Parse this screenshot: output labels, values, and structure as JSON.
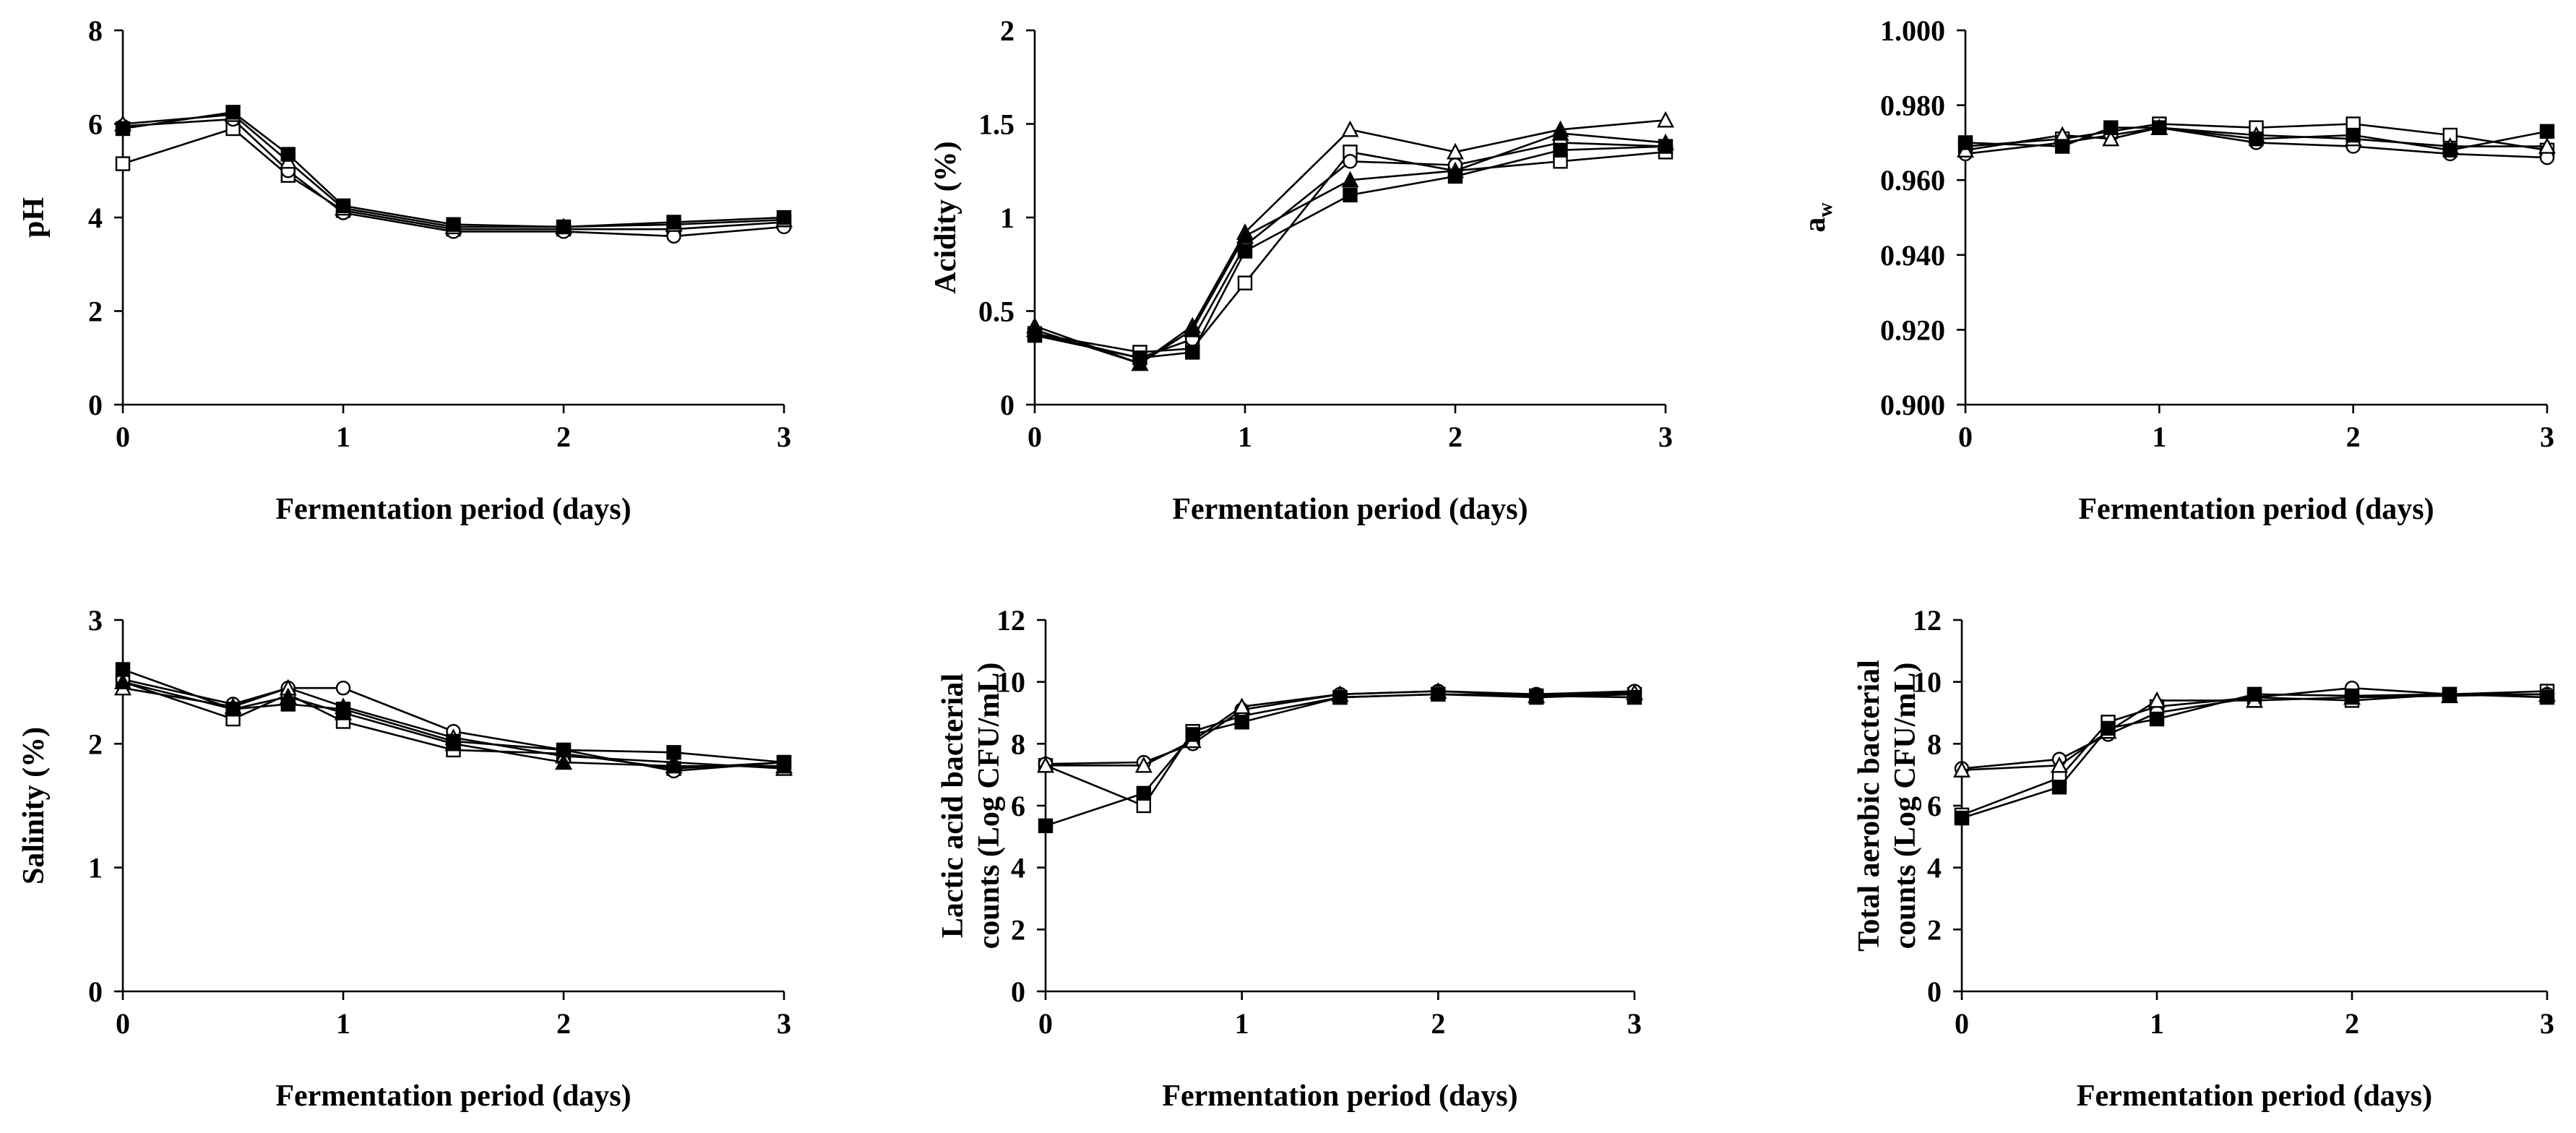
{
  "chart_data": [
    {
      "type": "line",
      "ylabel": "pH",
      "xlabel": "Fermentation period (days)",
      "ylim": [
        0,
        8
      ],
      "yticks": [
        0,
        2,
        4,
        6,
        8
      ],
      "ytick_labels": [
        "0",
        "2",
        "4",
        "6",
        "8"
      ],
      "xlim": [
        0,
        3
      ],
      "xticks": [
        0,
        1,
        2,
        3
      ],
      "xtick_labels": [
        "0",
        "1",
        "2",
        "3"
      ],
      "x": [
        0,
        0.5,
        0.75,
        1,
        1.5,
        2,
        2.5,
        3
      ],
      "series": [
        {
          "name": "open-square",
          "marker": "square-open",
          "values": [
            5.15,
            5.9,
            4.9,
            4.15,
            3.75,
            3.75,
            3.75,
            3.9
          ]
        },
        {
          "name": "open-circle",
          "marker": "circle-open",
          "values": [
            5.95,
            6.1,
            5.0,
            4.1,
            3.7,
            3.7,
            3.6,
            3.8
          ]
        },
        {
          "name": "open-triangle",
          "marker": "triangle-open",
          "values": [
            6.0,
            6.2,
            5.2,
            4.2,
            3.8,
            3.8,
            3.85,
            3.95
          ]
        },
        {
          "name": "filled-square",
          "marker": "square-filled",
          "values": [
            5.9,
            6.25,
            5.35,
            4.25,
            3.85,
            3.8,
            3.9,
            4.0
          ]
        }
      ]
    },
    {
      "type": "line",
      "ylabel": "Acidity (%)",
      "xlabel": "Fermentation period (days)",
      "ylim": [
        0,
        2
      ],
      "yticks": [
        0,
        0.5,
        1,
        1.5,
        2
      ],
      "ytick_labels": [
        "0",
        "0.5",
        "1",
        "1.5",
        "2"
      ],
      "xlim": [
        0,
        3
      ],
      "xticks": [
        0,
        1,
        2,
        3
      ],
      "xtick_labels": [
        "0",
        "1",
        "2",
        "3"
      ],
      "x": [
        0,
        0.5,
        0.75,
        1,
        1.5,
        2,
        2.5,
        3
      ],
      "series": [
        {
          "name": "open-square",
          "marker": "square-open",
          "values": [
            0.38,
            0.28,
            0.3,
            0.65,
            1.35,
            1.25,
            1.3,
            1.35
          ]
        },
        {
          "name": "open-circle",
          "marker": "circle-open",
          "values": [
            0.38,
            0.25,
            0.35,
            0.85,
            1.3,
            1.28,
            1.4,
            1.38
          ]
        },
        {
          "name": "open-triangle",
          "marker": "triangle-open",
          "values": [
            0.42,
            0.22,
            0.42,
            0.92,
            1.47,
            1.35,
            1.47,
            1.52
          ]
        },
        {
          "name": "filled-triangle",
          "marker": "triangle-filled",
          "values": [
            0.4,
            0.22,
            0.4,
            0.9,
            1.2,
            1.25,
            1.45,
            1.4
          ]
        },
        {
          "name": "filled-square",
          "marker": "square-filled",
          "values": [
            0.37,
            0.25,
            0.28,
            0.82,
            1.12,
            1.22,
            1.36,
            1.38
          ]
        }
      ]
    },
    {
      "type": "line",
      "ylabel": "a",
      "ylabel_sub": "w",
      "xlabel": "Fermentation period (days)",
      "ylim": [
        0.9,
        1.0
      ],
      "yticks": [
        0.9,
        0.92,
        0.94,
        0.96,
        0.98,
        1.0
      ],
      "ytick_labels": [
        "0.900",
        "0.920",
        "0.940",
        "0.960",
        "0.980",
        "1.000"
      ],
      "xlim": [
        0,
        3
      ],
      "xticks": [
        0,
        1,
        2,
        3
      ],
      "xtick_labels": [
        "0",
        "1",
        "2",
        "3"
      ],
      "x": [
        0,
        0.5,
        0.75,
        1,
        1.5,
        2,
        2.5,
        3
      ],
      "series": [
        {
          "name": "open-square",
          "marker": "square-open",
          "values": [
            0.969,
            0.971,
            0.973,
            0.975,
            0.974,
            0.975,
            0.972,
            0.968
          ]
        },
        {
          "name": "open-circle",
          "marker": "circle-open",
          "values": [
            0.967,
            0.97,
            0.972,
            0.974,
            0.97,
            0.969,
            0.967,
            0.966
          ]
        },
        {
          "name": "open-triangle",
          "marker": "triangle-open",
          "values": [
            0.968,
            0.972,
            0.971,
            0.974,
            0.972,
            0.971,
            0.969,
            0.969
          ]
        },
        {
          "name": "filled-square",
          "marker": "square-filled",
          "values": [
            0.97,
            0.969,
            0.974,
            0.974,
            0.971,
            0.972,
            0.968,
            0.973
          ]
        }
      ]
    },
    {
      "type": "line",
      "ylabel": "Salinity (%)",
      "xlabel": "Fermentation period (days)",
      "ylim": [
        0,
        3
      ],
      "yticks": [
        0,
        1,
        2,
        3
      ],
      "ytick_labels": [
        "0",
        "1",
        "2",
        "3"
      ],
      "xlim": [
        0,
        3
      ],
      "xticks": [
        0,
        1,
        2,
        3
      ],
      "xtick_labels": [
        "0",
        "1",
        "2",
        "3"
      ],
      "x": [
        0,
        0.5,
        0.75,
        1,
        1.5,
        2,
        2.5,
        3
      ],
      "series": [
        {
          "name": "open-square",
          "marker": "square-open",
          "values": [
            2.5,
            2.2,
            2.4,
            2.18,
            1.95,
            1.92,
            1.8,
            1.85
          ]
        },
        {
          "name": "open-circle",
          "marker": "circle-open",
          "values": [
            2.52,
            2.32,
            2.45,
            2.45,
            2.1,
            1.95,
            1.78,
            1.85
          ]
        },
        {
          "name": "open-triangle",
          "marker": "triangle-open",
          "values": [
            2.45,
            2.3,
            2.45,
            2.3,
            2.05,
            1.9,
            1.85,
            1.8
          ]
        },
        {
          "name": "filled-triangle",
          "marker": "triangle-filled",
          "values": [
            2.5,
            2.28,
            2.38,
            2.25,
            2.0,
            1.85,
            1.82,
            1.82
          ]
        },
        {
          "name": "filled-square",
          "marker": "square-filled",
          "values": [
            2.6,
            2.28,
            2.32,
            2.28,
            2.02,
            1.95,
            1.93,
            1.85
          ]
        }
      ]
    },
    {
      "type": "line",
      "ylabel": "Lactic acid bacterial",
      "ylabel2": "counts (Log CFU/mL)",
      "xlabel": "Fermentation period (days)",
      "ylim": [
        0,
        12
      ],
      "yticks": [
        0,
        2,
        4,
        6,
        8,
        10,
        12
      ],
      "ytick_labels": [
        "0",
        "2",
        "4",
        "6",
        "8",
        "10",
        "12"
      ],
      "xlim": [
        0,
        3
      ],
      "xticks": [
        0,
        1,
        2,
        3
      ],
      "xtick_labels": [
        "0",
        "1",
        "2",
        "3"
      ],
      "x": [
        0,
        0.5,
        0.75,
        1,
        1.5,
        2,
        2.5,
        3
      ],
      "series": [
        {
          "name": "open-square",
          "marker": "square-open",
          "values": [
            7.3,
            6.0,
            8.4,
            8.9,
            9.5,
            9.6,
            9.5,
            9.6
          ]
        },
        {
          "name": "open-circle",
          "marker": "circle-open",
          "values": [
            7.35,
            7.4,
            8.0,
            9.1,
            9.6,
            9.7,
            9.6,
            9.7
          ]
        },
        {
          "name": "open-triangle",
          "marker": "triangle-open",
          "values": [
            7.3,
            7.3,
            8.1,
            9.2,
            9.6,
            9.7,
            9.55,
            9.65
          ]
        },
        {
          "name": "filled-square",
          "marker": "square-filled",
          "values": [
            5.35,
            6.4,
            8.3,
            8.7,
            9.5,
            9.6,
            9.55,
            9.5
          ]
        }
      ]
    },
    {
      "type": "line",
      "ylabel": "Total aerobic bacterial",
      "ylabel2": "counts (Log CFU/mL)",
      "xlabel": "Fermentation period (days)",
      "ylim": [
        0,
        12
      ],
      "yticks": [
        0,
        2,
        4,
        6,
        8,
        10,
        12
      ],
      "ytick_labels": [
        "0",
        "2",
        "4",
        "6",
        "8",
        "10",
        "12"
      ],
      "xlim": [
        0,
        3
      ],
      "xticks": [
        0,
        1,
        2,
        3
      ],
      "xtick_labels": [
        "0",
        "1",
        "2",
        "3"
      ],
      "x": [
        0,
        0.5,
        0.75,
        1,
        1.5,
        2,
        2.5,
        3
      ],
      "series": [
        {
          "name": "open-square",
          "marker": "square-open",
          "values": [
            5.7,
            6.9,
            8.7,
            9.2,
            9.5,
            9.4,
            9.6,
            9.7
          ]
        },
        {
          "name": "open-circle",
          "marker": "circle-open",
          "values": [
            7.2,
            7.5,
            8.3,
            9.0,
            9.5,
            9.8,
            9.6,
            9.6
          ]
        },
        {
          "name": "open-triangle",
          "marker": "triangle-open",
          "values": [
            7.15,
            7.3,
            8.4,
            9.4,
            9.4,
            9.5,
            9.55,
            9.6
          ]
        },
        {
          "name": "filled-square",
          "marker": "square-filled",
          "values": [
            5.6,
            6.6,
            8.5,
            8.8,
            9.6,
            9.55,
            9.6,
            9.5
          ]
        }
      ]
    }
  ]
}
